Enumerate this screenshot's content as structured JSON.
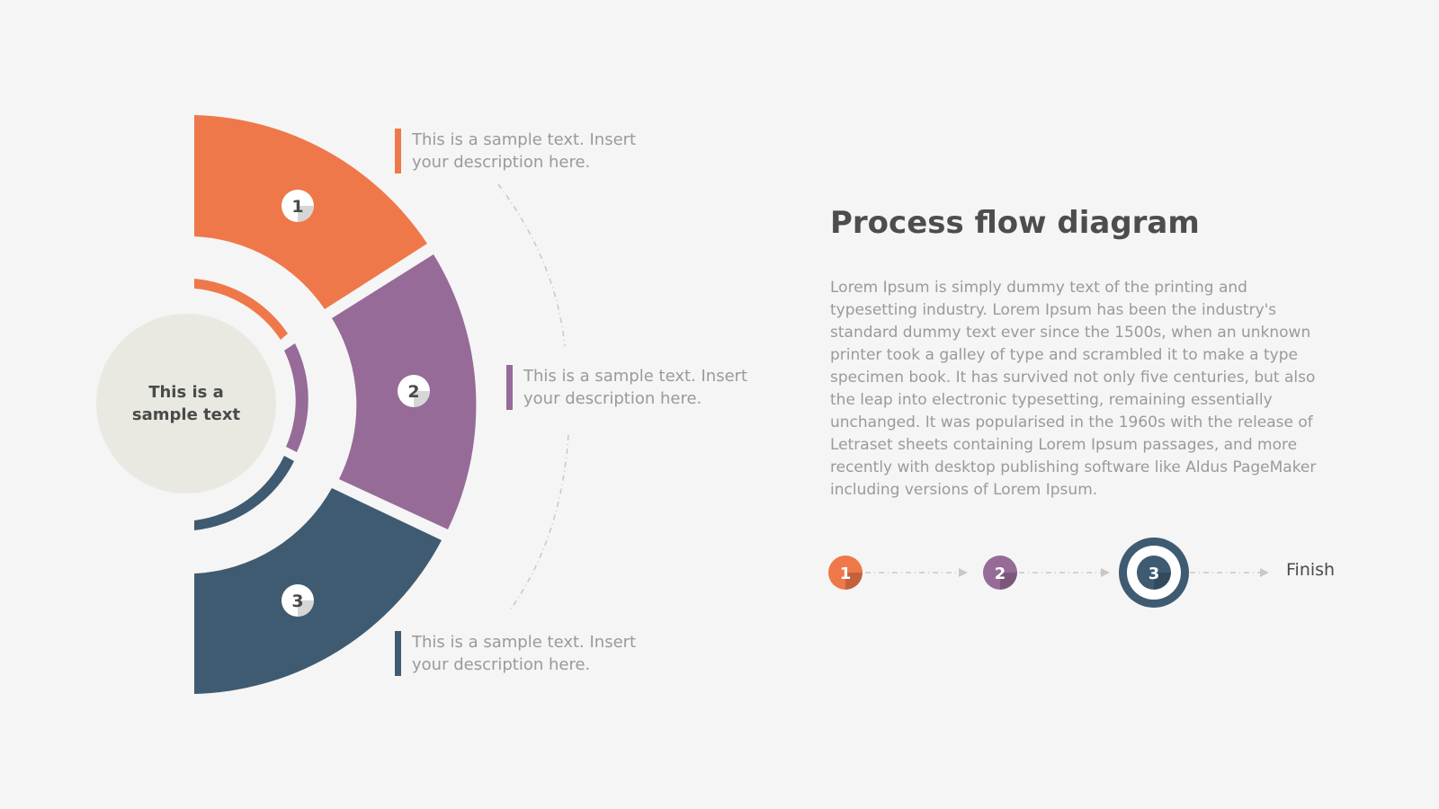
{
  "diagram": {
    "center_label": "This is a sample text",
    "segments": [
      {
        "number": "1",
        "text": "This is a sample text. Insert your description here.",
        "color": "#ef784a"
      },
      {
        "number": "2",
        "text": "This is a sample text. Insert your description here.",
        "color": "#966b98"
      },
      {
        "number": "3",
        "text": "This is a sample text. Insert your description here.",
        "color": "#3f5b72"
      }
    ],
    "center_color": "#e9e9e2",
    "connector_color": "#c8c8c8"
  },
  "info": {
    "title": "Process flow diagram",
    "body": "Lorem Ipsum is simply dummy text of the printing and typesetting industry. Lorem Ipsum has been the industry's standard dummy text ever since the 1500s, when an unknown printer took a galley of type and scrambled it to make a type specimen book. It has survived not only five centuries, but also the leap into electronic typesetting, remaining essentially unchanged. It was popularised in the 1960s with the release of Letraset sheets containing Lorem Ipsum passages, and more recently with desktop publishing software like Aldus PageMaker including versions of Lorem Ipsum."
  },
  "flow": {
    "steps": [
      {
        "number": "1",
        "color": "#ef784a",
        "active": false
      },
      {
        "number": "2",
        "color": "#966b98",
        "active": false
      },
      {
        "number": "3",
        "color": "#3f5b72",
        "active": true
      }
    ],
    "finish_label": "Finish"
  }
}
